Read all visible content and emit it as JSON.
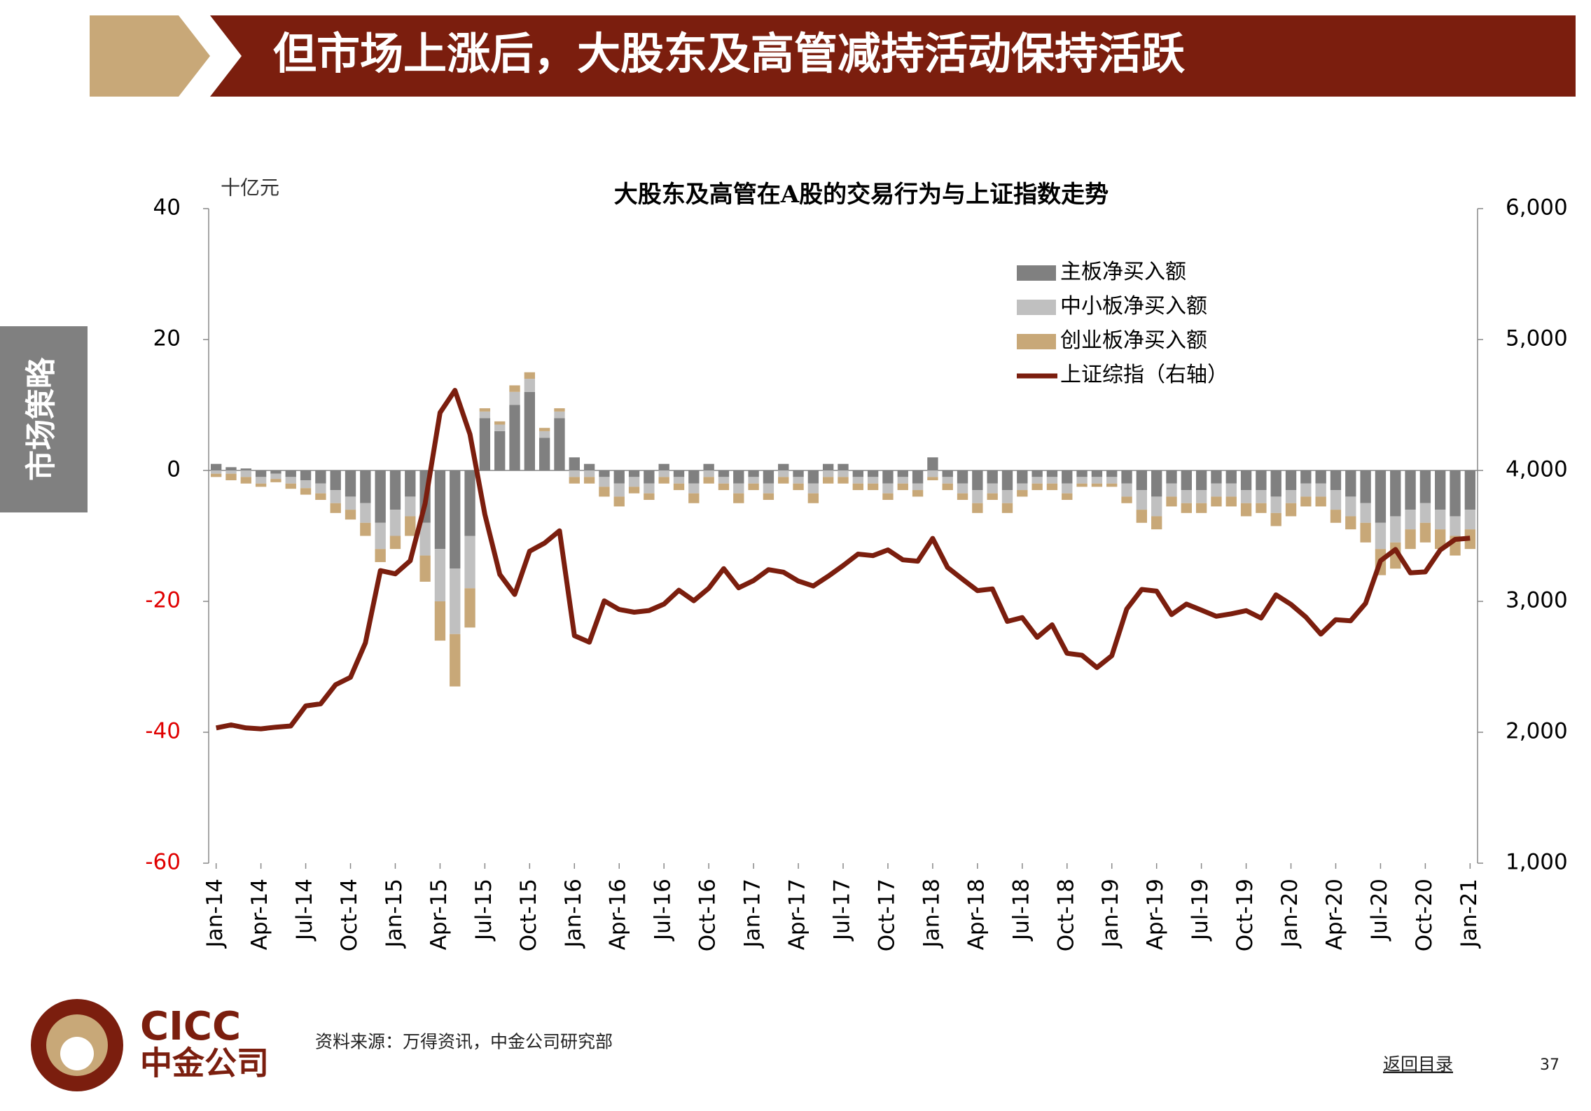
{
  "header": {
    "title": "但市场上涨后，大股东及高管减持活动保持活跃"
  },
  "side_tab": "市场策略",
  "chart_data": {
    "type": "combo",
    "title": "大股东及高管在A股的交易行为与上证指数走势",
    "y_unit": "十亿元",
    "categories": [
      "Jan-14",
      null,
      null,
      "Apr-14",
      null,
      null,
      "Jul-14",
      null,
      null,
      "Oct-14",
      null,
      null,
      "Jan-15",
      null,
      null,
      "Apr-15",
      null,
      null,
      "Jul-15",
      null,
      null,
      "Oct-15",
      null,
      null,
      "Jan-16",
      null,
      null,
      "Apr-16",
      null,
      null,
      "Jul-16",
      null,
      null,
      "Oct-16",
      null,
      null,
      "Jan-17",
      null,
      null,
      "Apr-17",
      null,
      null,
      "Jul-17",
      null,
      null,
      "Oct-17",
      null,
      null,
      "Jan-18",
      null,
      null,
      "Apr-18",
      null,
      null,
      "Jul-18",
      null,
      null,
      "Oct-18",
      null,
      null,
      "Jan-19",
      null,
      null,
      "Apr-19",
      null,
      null,
      "Jul-19",
      null,
      null,
      "Oct-19",
      null,
      null,
      "Jan-20",
      null,
      null,
      "Apr-20",
      null,
      null,
      "Jul-20",
      null,
      null,
      "Oct-20",
      null,
      null,
      "Jan-21"
    ],
    "series": [
      {
        "name": "主板净买入额",
        "color": "#808080",
        "values": [
          1,
          0.5,
          0.3,
          -1,
          -0.5,
          -1,
          -1.5,
          -2,
          -3,
          -4,
          -5,
          -8,
          -6,
          -4,
          -8,
          -12,
          -15,
          -10,
          8,
          6,
          10,
          12,
          5,
          8,
          2,
          1,
          -1,
          -2,
          -1,
          -2,
          1,
          -1,
          -2,
          1,
          -1,
          -2,
          -1,
          -2,
          1,
          -1,
          -2,
          1,
          1,
          -1,
          -1,
          -2,
          -1,
          -2,
          2,
          -1,
          -2,
          -3,
          -2,
          -3,
          -2,
          -1,
          -1,
          -2,
          -1,
          -1,
          -1,
          -2,
          -3,
          -4,
          -2,
          -3,
          -3,
          -2,
          -2,
          -3,
          -3,
          -4,
          -3,
          -2,
          -2,
          -3,
          -4,
          -5,
          -8,
          -7,
          -6,
          -5,
          -6,
          -7,
          -6
        ]
      },
      {
        "name": "中小板净买入额",
        "color": "#c0c0c0",
        "values": [
          -0.5,
          -0.5,
          -1,
          -1,
          -0.8,
          -1,
          -1.2,
          -1.5,
          -2,
          -2,
          -3,
          -4,
          -4,
          -3,
          -5,
          -8,
          -10,
          -8,
          1,
          1,
          2,
          2,
          1,
          1,
          -1,
          -1,
          -1.5,
          -2,
          -1.5,
          -1.5,
          -1,
          -1,
          -1.5,
          -1,
          -1,
          -1.5,
          -1,
          -1.5,
          -1,
          -1,
          -1.5,
          -1,
          -1,
          -1,
          -1,
          -1.5,
          -1,
          -1,
          -1,
          -1,
          -1.5,
          -2,
          -1.5,
          -2,
          -1,
          -1,
          -1,
          -1.5,
          -1,
          -1,
          -1,
          -2,
          -3,
          -3,
          -2,
          -2,
          -2,
          -2,
          -2,
          -2,
          -2,
          -2.5,
          -2,
          -2,
          -2,
          -3,
          -3,
          -3,
          -4,
          -4,
          -3,
          -3,
          -3,
          -3,
          -3
        ]
      },
      {
        "name": "创业板净买入额",
        "color": "#c8a878",
        "values": [
          -0.5,
          -1,
          -1,
          -0.5,
          -0.5,
          -0.8,
          -1,
          -1,
          -1.5,
          -1.5,
          -2,
          -2,
          -2,
          -3,
          -4,
          -6,
          -8,
          -6,
          0.5,
          0.5,
          1,
          1,
          0.5,
          0.5,
          -1,
          -1,
          -1.5,
          -1.5,
          -1,
          -1,
          -1,
          -1,
          -1.5,
          -1,
          -1,
          -1.5,
          -1,
          -1,
          -1,
          -1,
          -1.5,
          -1,
          -1,
          -1,
          -1,
          -1,
          -1,
          -1,
          -0.5,
          -1,
          -1,
          -1.5,
          -1,
          -1.5,
          -1,
          -1,
          -1,
          -1,
          -0.5,
          -0.5,
          -0.5,
          -1,
          -2,
          -2,
          -1.5,
          -1.5,
          -1.5,
          -1.5,
          -1.5,
          -2,
          -1.5,
          -2,
          -2,
          -1.5,
          -1.5,
          -2,
          -2,
          -3,
          -4,
          -4,
          -3,
          -3,
          -3,
          -3,
          -3
        ]
      },
      {
        "name": "上证综指（右轴）",
        "color": "#7b1e0e",
        "axis": "y2",
        "values": [
          2033,
          2056,
          2033,
          2026,
          2039,
          2048,
          2201,
          2217,
          2363,
          2420,
          2683,
          3235,
          3210,
          3310,
          3748,
          4441,
          4612,
          4277,
          3664,
          3206,
          3053,
          3383,
          3445,
          3539,
          2738,
          2688,
          3004,
          2938,
          2917,
          2930,
          2979,
          3085,
          3005,
          3100,
          3250,
          3104,
          3159,
          3242,
          3223,
          3155,
          3117,
          3192,
          3273,
          3361,
          3349,
          3393,
          3317,
          3307,
          3481,
          3259,
          3169,
          3082,
          3095,
          2847,
          2876,
          2725,
          2821,
          2603,
          2588,
          2494,
          2585,
          2941,
          3091,
          3078,
          2899,
          2979,
          2933,
          2886,
          2905,
          2929,
          2872,
          3050,
          2977,
          2880,
          2750,
          2860,
          2852,
          2985,
          3310,
          3396,
          3218,
          3225,
          3392,
          3473,
          3483
        ]
      }
    ],
    "ylim": [
      -60,
      40
    ],
    "yticks": [
      40,
      20,
      0,
      -20,
      -40,
      -60
    ],
    "y2lim": [
      1000,
      6000
    ],
    "y2ticks": [
      {
        "value": 6000,
        "label": "6,000"
      },
      {
        "value": 5000,
        "label": "5,000"
      },
      {
        "value": 4000,
        "label": "4,000"
      },
      {
        "value": 3000,
        "label": "3,000"
      },
      {
        "value": 2000,
        "label": "2,000"
      },
      {
        "value": 1000,
        "label": "1,000"
      }
    ],
    "negative_tick_color": "#e00000",
    "legend": "top-right"
  },
  "footer": {
    "logo_en": "CICC",
    "logo_cn": "中金公司",
    "source": "资料来源：万得资讯，中金公司研究部",
    "back": "返回目录",
    "page": "37"
  }
}
